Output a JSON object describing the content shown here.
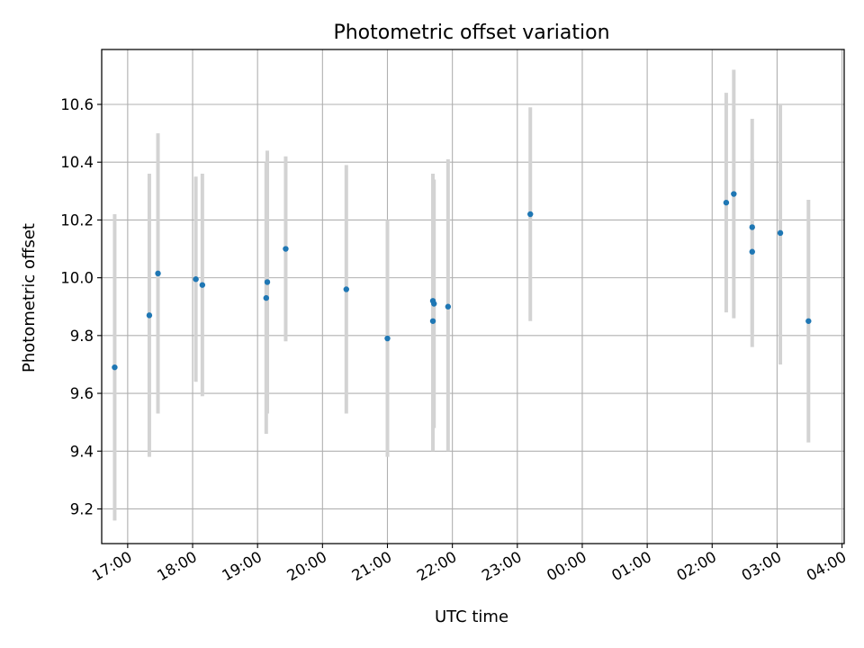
{
  "chart_data": {
    "type": "scatter",
    "title": "Photometric offset variation",
    "xlabel": "UTC time",
    "ylabel": "Photometric offset",
    "grid": true,
    "x_axis": {
      "unit": "UTC time (HH:MM, crosses midnight)",
      "range": [
        "16:36",
        "04:02"
      ],
      "ticks": [
        "17:00",
        "18:00",
        "19:00",
        "20:00",
        "21:00",
        "22:00",
        "23:00",
        "00:00",
        "01:00",
        "02:00",
        "03:00",
        "04:00"
      ]
    },
    "y_axis": {
      "range": [
        9.08,
        10.79
      ],
      "ticks": [
        "9.2",
        "9.4",
        "9.6",
        "9.8",
        "10.0",
        "10.2",
        "10.4",
        "10.6"
      ]
    },
    "colors": {
      "points": "#1f77b4",
      "errorbars": "#d3d3d3",
      "grid": "#b0b0b0"
    },
    "series": [
      {
        "points": [
          {
            "x": "16:48",
            "y": 9.69,
            "ylow": 9.16,
            "yhigh": 10.22
          },
          {
            "x": "17:20",
            "y": 9.87,
            "ylow": 9.38,
            "yhigh": 10.36
          },
          {
            "x": "17:28",
            "y": 10.015,
            "ylow": 9.53,
            "yhigh": 10.5
          },
          {
            "x": "18:03",
            "y": 9.995,
            "ylow": 9.64,
            "yhigh": 10.35
          },
          {
            "x": "18:09",
            "y": 9.975,
            "ylow": 9.59,
            "yhigh": 10.36
          },
          {
            "x": "19:08",
            "y": 9.93,
            "ylow": 9.46,
            "yhigh": 10.4
          },
          {
            "x": "19:09",
            "y": 9.985,
            "ylow": 9.53,
            "yhigh": 10.44
          },
          {
            "x": "19:26",
            "y": 10.1,
            "ylow": 9.78,
            "yhigh": 10.42
          },
          {
            "x": "20:22",
            "y": 9.96,
            "ylow": 9.53,
            "yhigh": 10.39
          },
          {
            "x": "21:00",
            "y": 9.79,
            "ylow": 9.38,
            "yhigh": 10.2
          },
          {
            "x": "21:42",
            "y": 9.85,
            "ylow": 9.4,
            "yhigh": 10.36
          },
          {
            "x": "21:42",
            "y": 9.92,
            "ylow": 9.48,
            "yhigh": 10.36
          },
          {
            "x": "21:43",
            "y": 9.91,
            "ylow": 9.48,
            "yhigh": 10.34
          },
          {
            "x": "21:56",
            "y": 9.9,
            "ylow": 9.4,
            "yhigh": 10.41
          },
          {
            "x": "23:12",
            "y": 10.22,
            "ylow": 9.85,
            "yhigh": 10.59
          },
          {
            "x": "02:13",
            "y": 10.26,
            "ylow": 9.88,
            "yhigh": 10.64
          },
          {
            "x": "02:20",
            "y": 10.29,
            "ylow": 9.86,
            "yhigh": 10.72
          },
          {
            "x": "02:37",
            "y": 10.175,
            "ylow": 9.81,
            "yhigh": 10.55
          },
          {
            "x": "02:37",
            "y": 10.09,
            "ylow": 9.76,
            "yhigh": 10.41
          },
          {
            "x": "03:03",
            "y": 10.155,
            "ylow": 9.7,
            "yhigh": 10.6
          },
          {
            "x": "03:29",
            "y": 9.85,
            "ylow": 9.43,
            "yhigh": 10.27
          }
        ]
      }
    ]
  }
}
